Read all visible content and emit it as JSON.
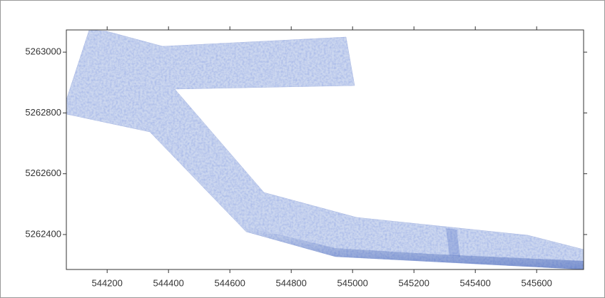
{
  "chart_data": {
    "type": "map",
    "xlim": [
      544067,
      545753
    ],
    "ylim": [
      5262285,
      5263073
    ],
    "xticks": [
      544200,
      544400,
      544600,
      544800,
      545000,
      545200,
      545400,
      545600
    ],
    "yticks": [
      5262400,
      5262600,
      5262800,
      5263000
    ]
  }
}
